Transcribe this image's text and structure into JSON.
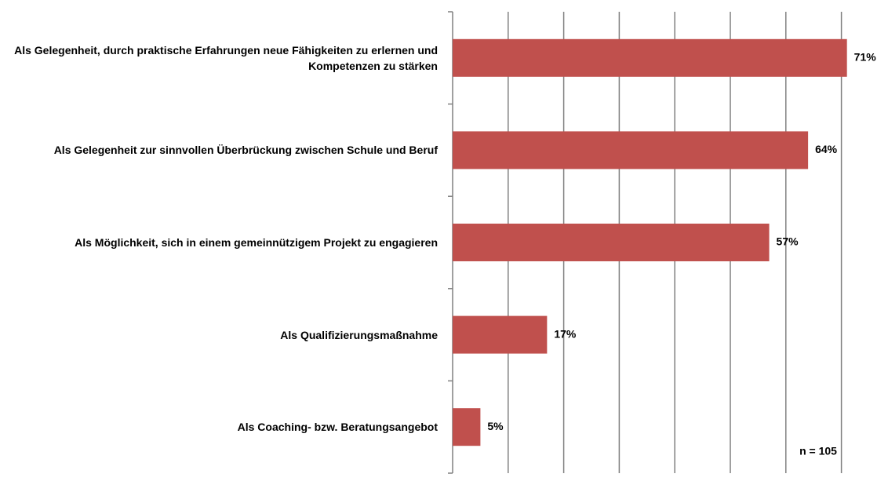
{
  "chart_data": {
    "type": "bar",
    "orientation": "horizontal",
    "categories": [
      "Als Gelegenheit, durch praktische Erfahrungen neue Fähigkeiten zu erlernen und Kompetenzen zu stärken",
      "Als Gelegenheit zur sinnvollen Überbrückung zwischen Schule und Beruf",
      "Als Möglichkeit, sich in einem gemeinnützigem Projekt zu engagieren",
      "Als Qualifizierungsmaßnahme",
      "Als Coaching- bzw. Beratungsangebot"
    ],
    "values": [
      71,
      64,
      57,
      17,
      5
    ],
    "value_labels": [
      "71%",
      "64%",
      "57%",
      "17%",
      "5%"
    ],
    "color": "#c0504d",
    "xlim": [
      0,
      75
    ],
    "xticks": [
      0,
      10,
      20,
      30,
      40,
      50,
      60,
      70
    ],
    "grid": true,
    "annotation": "n = 105"
  }
}
